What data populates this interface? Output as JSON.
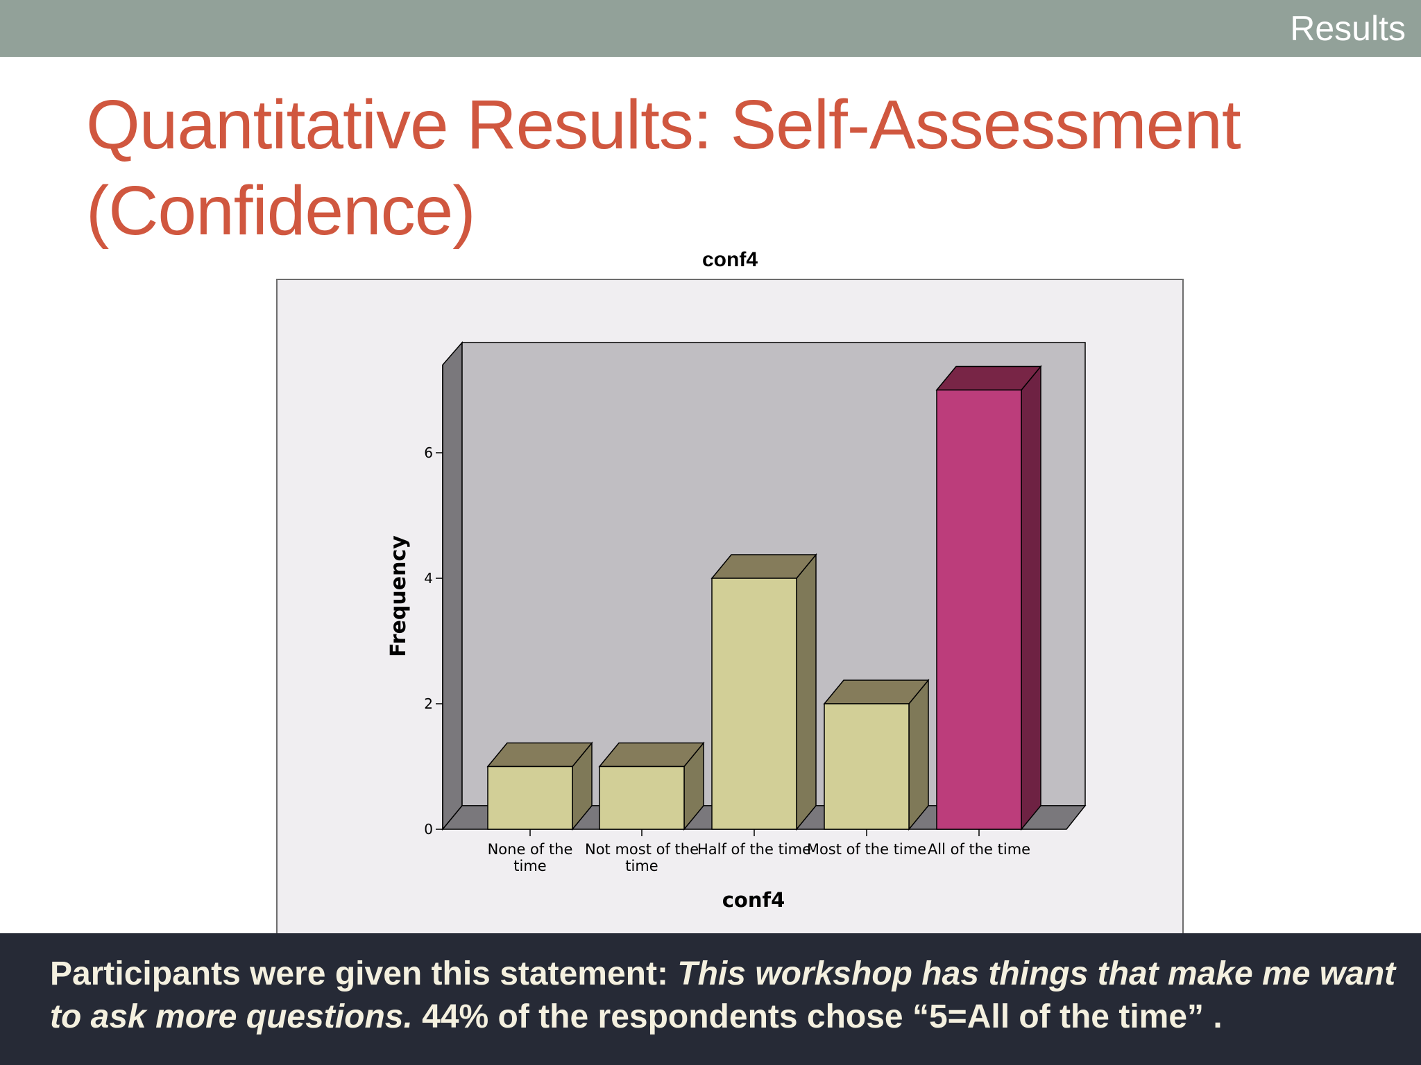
{
  "header": {
    "section_label": "Results"
  },
  "slide": {
    "title": "Quantitative Results: Self-Assessment (Confidence)"
  },
  "chart_data": {
    "type": "bar",
    "title": "conf4",
    "xlabel": "conf4",
    "ylabel": "Frequency",
    "categories": [
      "None of the time",
      "Not most of the time",
      "Half of the time",
      "Most of the time",
      "All of the time"
    ],
    "category_lines": [
      [
        "None of the",
        "time"
      ],
      [
        "Not most of the",
        "time"
      ],
      [
        "Half of the time"
      ],
      [
        "Most of the time"
      ],
      [
        "All of the time"
      ]
    ],
    "values": [
      1,
      1,
      4,
      2,
      7
    ],
    "highlight_index": 4,
    "yticks": [
      0,
      2,
      4,
      6
    ],
    "ylim": [
      0,
      7.4
    ],
    "grid": false,
    "style": "3d",
    "colors": {
      "bar_front": "#d2cf97",
      "bar_top": "#857c5b",
      "bar_side": "#7f7958",
      "highlight_front": "#bc3d7b",
      "highlight_top": "#782546",
      "highlight_side": "#6e2243",
      "back_wall": "#c0bec2",
      "side_wall": "#7a787c",
      "floor": "#7a787c"
    }
  },
  "caption": {
    "lead": "Participants were given this statement: ",
    "statement": "This workshop has things that make me want to ask more questions.",
    "result": " 44% of the respondents chose “5=All of the time” ."
  }
}
